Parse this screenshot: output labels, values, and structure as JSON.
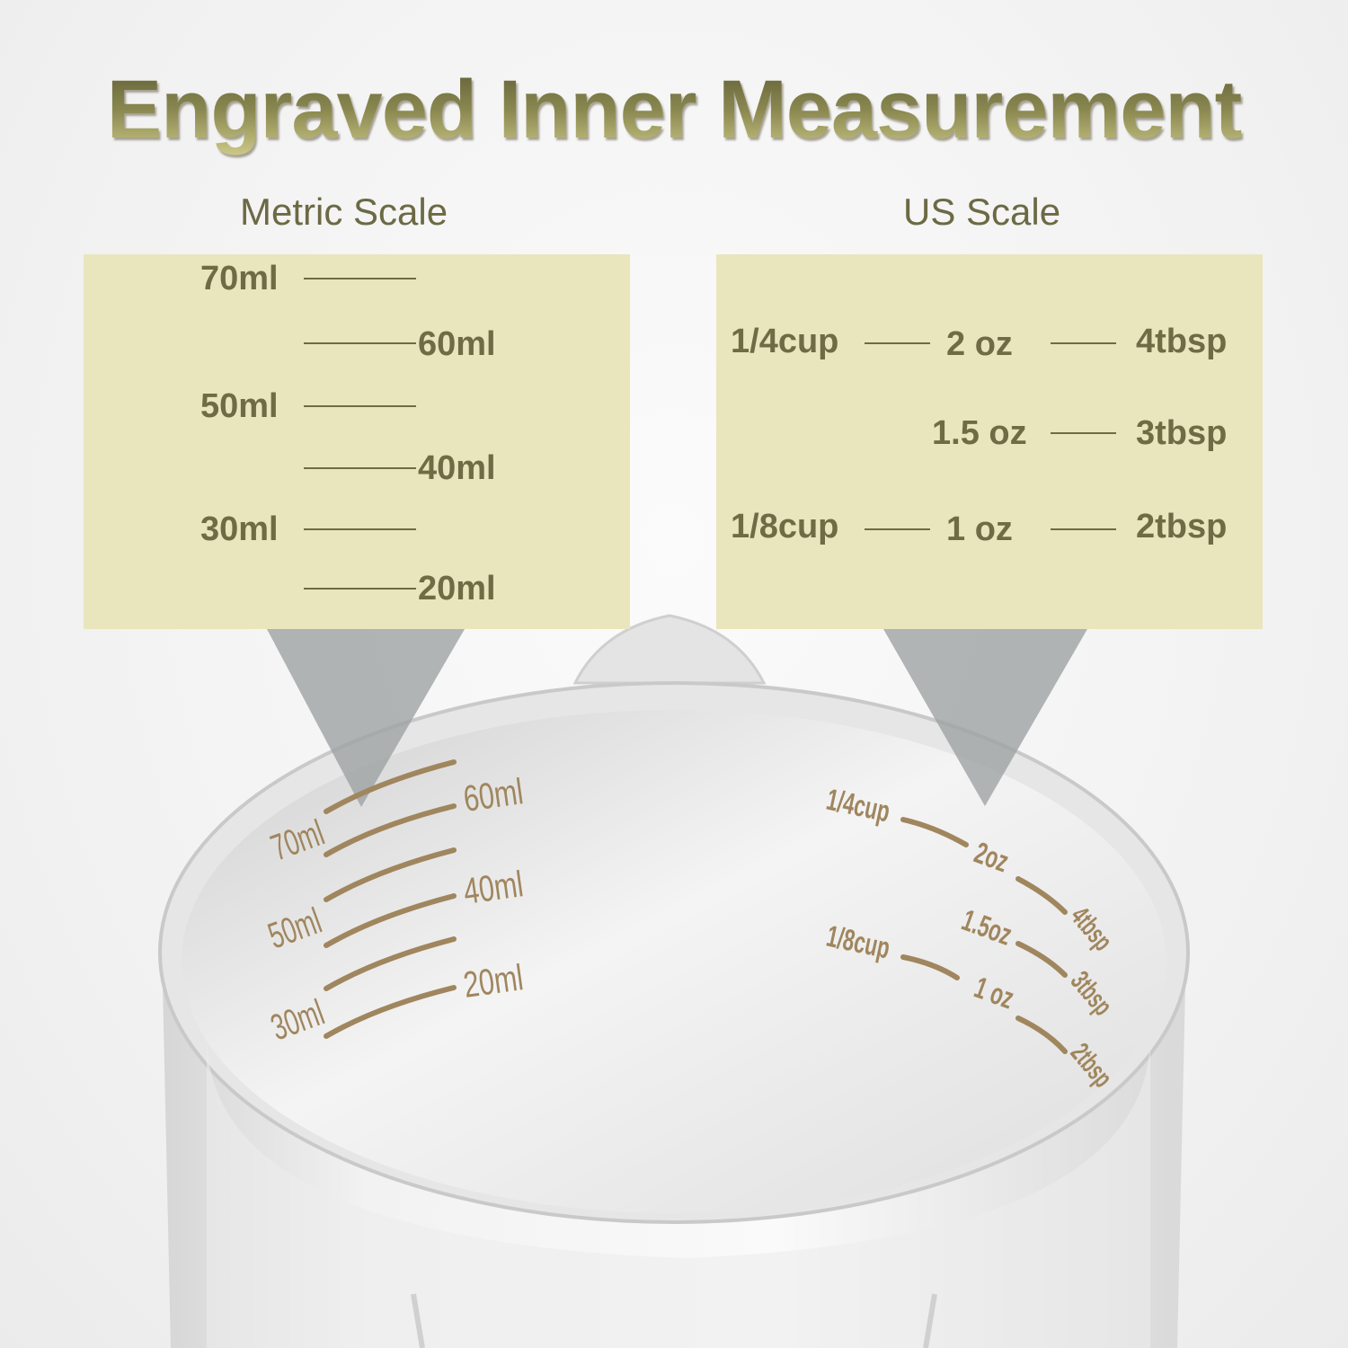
{
  "title": "Engraved Inner Measurement",
  "metric": {
    "heading": "Metric Scale",
    "labels": [
      "70ml",
      "60ml",
      "50ml",
      "40ml",
      "30ml",
      "20ml"
    ]
  },
  "us": {
    "heading": "US Scale",
    "cups": [
      "1/4cup",
      "1/8cup"
    ],
    "oz": [
      "2 oz",
      "1.5 oz",
      "1 oz"
    ],
    "tbsp": [
      "4tbsp",
      "3tbsp",
      "2tbsp"
    ]
  },
  "engraved": {
    "metric": [
      "70ml",
      "60ml",
      "50ml",
      "40ml",
      "30ml",
      "20ml"
    ],
    "us": [
      "1/4cup",
      "2oz",
      "4tbsp",
      "1.5oz",
      "3tbsp",
      "1/8cup",
      "1 oz",
      "2tbsp"
    ]
  },
  "colors": {
    "panel": "#e9e6bd",
    "text": "#6e6c45",
    "engraving": "#a0865e"
  }
}
